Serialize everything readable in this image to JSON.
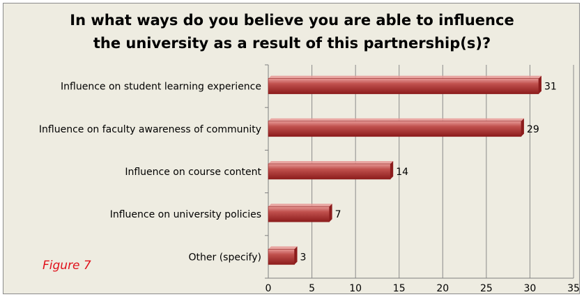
{
  "figure_label": "Figure 7",
  "colors": {
    "bar_dark": "#8c1c1c",
    "bar_mid": "#c0504d",
    "bar_light": "#e79a97",
    "background": "#eeece1",
    "gridline": "#8a8a8a",
    "figure_label": "#e0101a"
  },
  "chart_data": {
    "type": "bar",
    "orientation": "horizontal",
    "title": "In what ways do you believe you are able to influence the university as a result of this partnership(s)?",
    "title_lines": [
      "In what ways do you believe you are able to influence",
      "the university as a result of this partnership(s)?"
    ],
    "categories": [
      "Influence on student learning experience",
      "Influence on faculty awareness of community",
      "Influence on course content",
      "Influence on university policies",
      "Other (specify)"
    ],
    "values": [
      31,
      29,
      14,
      7,
      3
    ],
    "xlim": [
      0,
      35
    ],
    "xticks": [
      0,
      5,
      10,
      15,
      20,
      25,
      30,
      35
    ],
    "grid": true,
    "legend": "none",
    "xlabel": "",
    "ylabel": ""
  }
}
